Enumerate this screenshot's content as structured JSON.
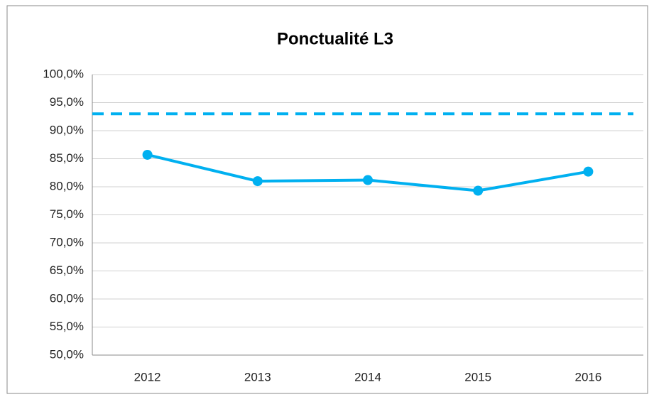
{
  "chart_data": {
    "type": "line",
    "title": "Ponctualité L3",
    "categories": [
      "2012",
      "2013",
      "2014",
      "2015",
      "2016"
    ],
    "series": [
      {
        "color": "#00b0f0",
        "values": [
          85.7,
          81.0,
          81.2,
          79.3,
          82.7
        ]
      }
    ],
    "hline": {
      "value": 93.0,
      "color": "#00b0f0",
      "dashed": true
    },
    "ylim": [
      50,
      100
    ],
    "yticks": [
      {
        "value": 50,
        "label": "50,0%"
      },
      {
        "value": 55,
        "label": "55,0%"
      },
      {
        "value": 60,
        "label": "60,0%"
      },
      {
        "value": 65,
        "label": "65,0%"
      },
      {
        "value": 70,
        "label": "70,0%"
      },
      {
        "value": 75,
        "label": "75,0%"
      },
      {
        "value": 80,
        "label": "80,0%"
      },
      {
        "value": 85,
        "label": "85,0%"
      },
      {
        "value": 90,
        "label": "90,0%"
      },
      {
        "value": 95,
        "label": "95,0%"
      },
      {
        "value": 100,
        "label": "100,0%"
      }
    ],
    "grid": true
  }
}
